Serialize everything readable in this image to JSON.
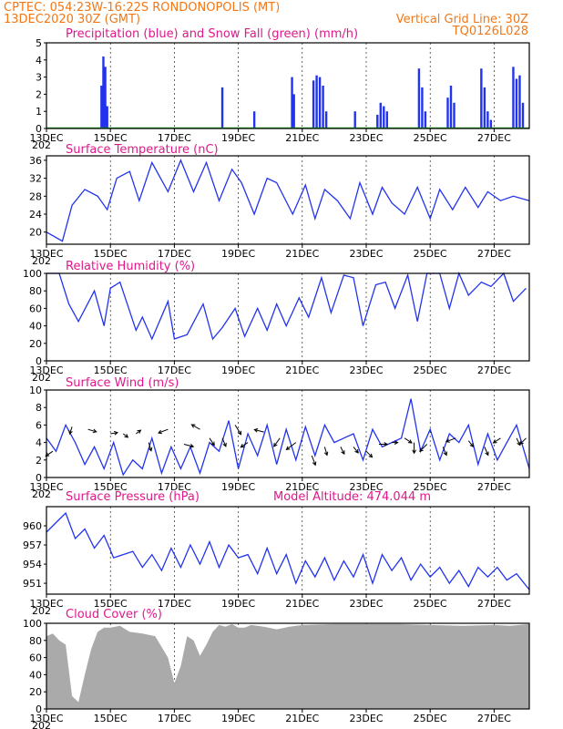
{
  "header": {
    "line1_left": "CPTEC:   054:23W-16:22S   RONDONOPOLIS (MT)",
    "line2_left": "13DEC2020 30Z (GMT)",
    "line2_right": "Vertical Grid Line: 30Z",
    "line3_right": "TQ0126L028"
  },
  "x_tick_labels": [
    "13DEC",
    "15DEC",
    "17DEC",
    "19DEC",
    "21DEC",
    "23DEC",
    "25DEC",
    "27DEC"
  ],
  "x_tick_days": [
    13,
    15,
    17,
    19,
    21,
    23,
    25,
    27
  ],
  "x_year_stub": "202",
  "colors": {
    "data": "#2233ee",
    "snow": "#22aa22",
    "cloud": "#aaaaaa",
    "title": "#e0188a",
    "header": "#f07818",
    "arrow": "#000000"
  },
  "panels": {
    "precip": {
      "title": "Precipitation (blue) and Snow Fall (green) (mm/h)"
    },
    "temp": {
      "title": "Surface Temperature (nC)"
    },
    "rh": {
      "title": "Relative Humidity (%)"
    },
    "wind": {
      "title": "Surface Wind (m/s)"
    },
    "pres": {
      "title": "Surface Pressure (hPa)",
      "extra": "Model Altitude: 474.044 m"
    },
    "cloud": {
      "title": "Cloud Cover (%)"
    }
  },
  "chart_data": [
    {
      "type": "bar",
      "title": "Precipitation (blue) and Snow Fall (green) (mm/h)",
      "x_units": "day of December 2020",
      "xlim": [
        13.0,
        28.1
      ],
      "ylim": [
        0,
        5
      ],
      "yticks": [
        0,
        1,
        2,
        3,
        4,
        5
      ],
      "series": [
        {
          "name": "Precipitation",
          "color": "#2233ee",
          "bars": [
            [
              14.72,
              2.5
            ],
            [
              14.78,
              4.2
            ],
            [
              14.84,
              3.6
            ],
            [
              14.9,
              1.3
            ],
            [
              18.5,
              2.4
            ],
            [
              19.5,
              1.0
            ],
            [
              20.68,
              3.0
            ],
            [
              20.74,
              2.0
            ],
            [
              21.35,
              2.8
            ],
            [
              21.45,
              3.1
            ],
            [
              21.55,
              3.0
            ],
            [
              21.65,
              2.5
            ],
            [
              21.75,
              1.0
            ],
            [
              22.65,
              1.0
            ],
            [
              23.35,
              0.8
            ],
            [
              23.45,
              1.5
            ],
            [
              23.55,
              1.3
            ],
            [
              23.65,
              1.0
            ],
            [
              24.65,
              3.5
            ],
            [
              24.75,
              2.4
            ],
            [
              24.85,
              1.0
            ],
            [
              25.55,
              1.8
            ],
            [
              25.65,
              2.5
            ],
            [
              25.75,
              1.5
            ],
            [
              26.6,
              3.5
            ],
            [
              26.7,
              2.4
            ],
            [
              26.8,
              1.0
            ],
            [
              26.9,
              0.5
            ],
            [
              27.6,
              3.6
            ],
            [
              27.7,
              2.9
            ],
            [
              27.8,
              3.1
            ],
            [
              27.9,
              1.5
            ]
          ]
        },
        {
          "name": "Snow Fall",
          "color": "#22aa22",
          "value": 0
        }
      ]
    },
    {
      "type": "line",
      "title": "Surface Temperature (nC)",
      "xlim": [
        13.0,
        28.1
      ],
      "ylim": [
        17.3,
        37
      ],
      "yticks": [
        20,
        24,
        28,
        32,
        36
      ],
      "series": [
        {
          "name": "Surface Temperature",
          "color": "#2233ee",
          "x": [
            13.0,
            13.5,
            13.8,
            14.2,
            14.6,
            14.9,
            15.2,
            15.6,
            15.9,
            16.3,
            16.8,
            17.2,
            17.6,
            18.0,
            18.4,
            18.8,
            19.1,
            19.5,
            19.9,
            20.2,
            20.7,
            21.1,
            21.4,
            21.7,
            22.1,
            22.5,
            22.8,
            23.2,
            23.5,
            23.8,
            24.2,
            24.6,
            25.0,
            25.3,
            25.7,
            26.1,
            26.5,
            26.8,
            27.2,
            27.6,
            28.1
          ],
          "y": [
            20.0,
            18.0,
            26.0,
            29.5,
            28.0,
            25.0,
            32.0,
            33.5,
            27.0,
            35.5,
            29.0,
            36.0,
            29.0,
            35.5,
            27.0,
            34.0,
            31.0,
            24.0,
            32.0,
            31.0,
            24.0,
            30.5,
            23.0,
            29.5,
            27.0,
            23.0,
            31.0,
            24.0,
            30.0,
            26.5,
            24.0,
            30.0,
            23.0,
            29.5,
            25.0,
            30.0,
            25.5,
            29.0,
            27.0,
            28.0,
            27.0
          ]
        }
      ]
    },
    {
      "type": "line",
      "title": "Relative Humidity (%)",
      "xlim": [
        13.0,
        28.1
      ],
      "ylim": [
        0,
        100
      ],
      "yticks": [
        0,
        20,
        40,
        60,
        80,
        100
      ],
      "series": [
        {
          "name": "Relative Humidity",
          "color": "#2233ee",
          "x": [
            13.0,
            13.4,
            13.7,
            14.0,
            14.5,
            14.8,
            15.0,
            15.3,
            15.8,
            16.0,
            16.3,
            16.8,
            17.0,
            17.4,
            17.9,
            18.2,
            18.5,
            18.9,
            19.2,
            19.6,
            19.9,
            20.2,
            20.5,
            20.9,
            21.2,
            21.6,
            21.9,
            22.3,
            22.6,
            22.9,
            23.3,
            23.6,
            23.9,
            24.3,
            24.6,
            24.9,
            25.3,
            25.6,
            25.9,
            26.2,
            26.6,
            26.9,
            27.3,
            27.6,
            28.0
          ],
          "y": [
            100,
            100,
            65,
            45,
            80,
            40,
            83,
            90,
            35,
            50,
            25,
            68,
            25,
            30,
            65,
            25,
            38,
            60,
            28,
            60,
            35,
            65,
            40,
            72,
            50,
            95,
            55,
            98,
            95,
            40,
            87,
            90,
            60,
            98,
            45,
            100,
            100,
            60,
            100,
            75,
            90,
            85,
            100,
            68,
            83
          ]
        }
      ]
    },
    {
      "type": "line",
      "title": "Surface Wind (m/s)",
      "xlim": [
        13.0,
        28.1
      ],
      "ylim": [
        0,
        10
      ],
      "yticks": [
        0,
        2,
        4,
        6,
        8,
        10
      ],
      "series": [
        {
          "name": "Surface Wind",
          "color": "#2233ee",
          "x": [
            13.0,
            13.3,
            13.6,
            13.9,
            14.2,
            14.5,
            14.8,
            15.1,
            15.4,
            15.7,
            16.0,
            16.3,
            16.6,
            16.9,
            17.2,
            17.5,
            17.8,
            18.1,
            18.4,
            18.7,
            19.0,
            19.3,
            19.6,
            19.9,
            20.2,
            20.5,
            20.8,
            21.1,
            21.4,
            21.7,
            22.0,
            22.3,
            22.6,
            22.9,
            23.2,
            23.5,
            23.8,
            24.1,
            24.4,
            24.7,
            25.0,
            25.3,
            25.6,
            25.9,
            26.2,
            26.5,
            26.8,
            27.1,
            27.4,
            27.7,
            28.1
          ],
          "y": [
            4.5,
            3.0,
            6.0,
            4.0,
            1.5,
            3.5,
            1.0,
            4.0,
            0.3,
            2.0,
            1.0,
            4.5,
            0.5,
            3.5,
            1.0,
            3.5,
            0.5,
            4.0,
            3.0,
            6.5,
            1.0,
            5.0,
            2.5,
            6.0,
            1.5,
            5.5,
            2.0,
            5.8,
            2.5,
            6.0,
            4.0,
            4.5,
            5.0,
            2.0,
            5.5,
            3.5,
            4.0,
            4.5,
            9.0,
            3.0,
            5.5,
            2.0,
            5.0,
            4.0,
            6.0,
            1.5,
            5.0,
            2.0,
            4.0,
            6.0,
            1.0
          ]
        }
      ],
      "wind_arrows": [
        [
          13.2,
          3.0,
          -0.6,
          0.4
        ],
        [
          13.8,
          5.8,
          -0.2,
          0.6
        ],
        [
          14.3,
          5.5,
          0.7,
          0.2
        ],
        [
          15.0,
          5.0,
          0.6,
          -0.1
        ],
        [
          15.4,
          5.0,
          0.4,
          0.3
        ],
        [
          15.8,
          5.0,
          0.4,
          -0.3
        ],
        [
          16.2,
          4.0,
          0.2,
          0.7
        ],
        [
          16.8,
          5.5,
          -0.8,
          0.3
        ],
        [
          17.3,
          3.8,
          0.8,
          0.2
        ],
        [
          17.8,
          5.5,
          -0.7,
          -0.4
        ],
        [
          18.1,
          4.5,
          0.4,
          0.6
        ],
        [
          18.5,
          4.5,
          0.3,
          0.7
        ],
        [
          18.9,
          6.0,
          0.5,
          0.8
        ],
        [
          19.3,
          4.0,
          -0.6,
          0.4
        ],
        [
          19.8,
          5.2,
          -0.8,
          -0.2
        ],
        [
          20.3,
          4.5,
          -0.5,
          0.7
        ],
        [
          20.8,
          4.0,
          -0.8,
          0.6
        ],
        [
          21.3,
          2.5,
          0.3,
          0.8
        ],
        [
          21.7,
          3.5,
          0.2,
          0.7
        ],
        [
          22.2,
          3.5,
          0.3,
          0.6
        ],
        [
          22.6,
          3.5,
          0.4,
          0.5
        ],
        [
          23.0,
          3.0,
          0.5,
          0.5
        ],
        [
          23.4,
          3.8,
          0.7,
          0.0
        ],
        [
          23.8,
          4.0,
          0.5,
          0.0
        ],
        [
          24.2,
          4.5,
          0.6,
          0.4
        ],
        [
          24.5,
          4.0,
          0.0,
          0.9
        ],
        [
          24.9,
          3.8,
          -0.6,
          0.6
        ],
        [
          25.4,
          3.5,
          0.3,
          0.7
        ],
        [
          25.8,
          4.5,
          -0.8,
          0.3
        ],
        [
          26.2,
          4.2,
          0.4,
          0.5
        ],
        [
          26.7,
          3.5,
          0.3,
          0.7
        ],
        [
          27.2,
          4.5,
          -0.6,
          0.4
        ],
        [
          27.7,
          4.5,
          0.3,
          0.6
        ],
        [
          28.0,
          4.5,
          -0.5,
          0.5
        ]
      ]
    },
    {
      "type": "line",
      "title": "Surface Pressure (hPa)",
      "xlim": [
        13.0,
        28.1
      ],
      "ylim": [
        949.3,
        963.0
      ],
      "yticks": [
        951,
        954,
        957,
        960
      ],
      "series": [
        {
          "name": "Surface Pressure",
          "color": "#2233ee",
          "x": [
            13.0,
            13.3,
            13.6,
            13.9,
            14.2,
            14.5,
            14.8,
            15.1,
            15.4,
            15.7,
            16.0,
            16.3,
            16.6,
            16.9,
            17.2,
            17.5,
            17.8,
            18.1,
            18.4,
            18.7,
            19.0,
            19.3,
            19.6,
            19.9,
            20.2,
            20.5,
            20.8,
            21.1,
            21.4,
            21.7,
            22.0,
            22.3,
            22.6,
            22.9,
            23.2,
            23.5,
            23.8,
            24.1,
            24.4,
            24.7,
            25.0,
            25.3,
            25.6,
            25.9,
            26.2,
            26.5,
            26.8,
            27.1,
            27.4,
            27.7,
            28.1
          ],
          "y": [
            959.0,
            960.5,
            962.0,
            958.0,
            959.5,
            956.5,
            958.5,
            955.0,
            955.5,
            956.0,
            953.5,
            955.5,
            953.0,
            956.5,
            953.5,
            957.0,
            954.0,
            957.5,
            953.5,
            957.0,
            955.0,
            955.5,
            952.5,
            956.5,
            952.5,
            955.5,
            951.0,
            954.5,
            952.0,
            955.0,
            951.5,
            954.5,
            952.0,
            955.5,
            951.0,
            955.5,
            953.0,
            955.0,
            951.5,
            954.0,
            952.0,
            953.5,
            951.0,
            953.0,
            950.5,
            953.5,
            952.0,
            953.5,
            951.5,
            952.5,
            950.0
          ]
        }
      ]
    },
    {
      "type": "area",
      "title": "Cloud Cover (%)",
      "xlim": [
        13.0,
        28.1
      ],
      "ylim": [
        0,
        100
      ],
      "yticks": [
        0,
        20,
        40,
        60,
        80,
        100
      ],
      "series": [
        {
          "name": "Cloud Cover",
          "color": "#aaaaaa",
          "x": [
            13.0,
            13.2,
            13.4,
            13.6,
            13.8,
            14.0,
            14.2,
            14.4,
            14.6,
            14.8,
            15.0,
            15.3,
            15.6,
            16.0,
            16.4,
            16.8,
            17.0,
            17.2,
            17.4,
            17.6,
            17.8,
            18.0,
            18.2,
            18.4,
            18.6,
            18.8,
            19.0,
            19.2,
            19.4,
            19.8,
            20.2,
            20.6,
            21.0,
            22.0,
            23.0,
            24.0,
            25.0,
            26.0,
            27.0,
            27.5,
            28.1
          ],
          "y": [
            85,
            88,
            80,
            75,
            15,
            8,
            40,
            70,
            90,
            95,
            95,
            97,
            90,
            88,
            85,
            60,
            30,
            50,
            85,
            80,
            62,
            75,
            90,
            98,
            96,
            99,
            95,
            95,
            98,
            96,
            93,
            96,
            98,
            99,
            99,
            99,
            98,
            97,
            98,
            97,
            99
          ]
        }
      ]
    }
  ]
}
